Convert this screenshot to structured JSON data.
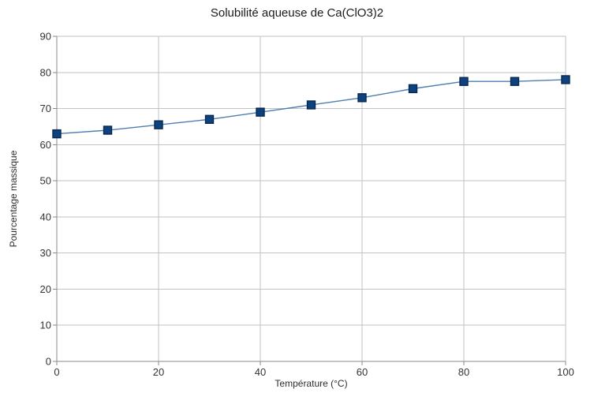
{
  "chart_data": {
    "type": "line",
    "title": "Solubilité aqueuse de Ca(ClO3)2",
    "xlabel": "Température (°C)",
    "ylabel": "Pourcentage massique",
    "x": [
      0,
      10,
      20,
      30,
      40,
      50,
      60,
      70,
      80,
      90,
      100
    ],
    "y": [
      63,
      64,
      65.5,
      67,
      69,
      71,
      73,
      75.5,
      77.5,
      77.5,
      78
    ],
    "xlim": [
      0,
      100
    ],
    "ylim": [
      0,
      90
    ],
    "x_ticks": [
      0,
      20,
      40,
      60,
      80,
      100
    ],
    "y_ticks": [
      0,
      10,
      20,
      30,
      40,
      50,
      60,
      70,
      80,
      90
    ],
    "grid": true,
    "legend": false,
    "marker": "square",
    "colors": {
      "line": "#4f7fb0",
      "marker_fill": "#0f417f",
      "marker_stroke": "#07294f",
      "grid": "#c2c2c2",
      "axis": "#8a8a8a",
      "tick_text": "#333333",
      "title_text": "#1a1a1a",
      "background": "#ffffff"
    }
  }
}
